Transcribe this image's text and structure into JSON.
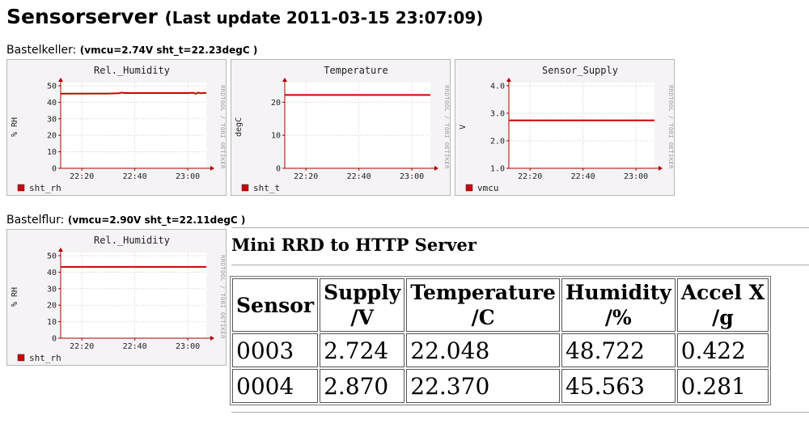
{
  "header": {
    "title": "Sensorserver",
    "subtitle": "(Last update 2011-03-15 23:07:09)"
  },
  "sections": [
    {
      "name": "Bastelkeller:",
      "info": "(vmcu=2.74V sht_t=22.23degC )"
    },
    {
      "name": "Bastelflur:",
      "info": "(vmcu=2.90V sht_t=22.11degC )"
    }
  ],
  "watermark": "RRDTOOL / TOBI OETIKER",
  "colors": {
    "series": "#cc0000",
    "axis": "#aa0000",
    "grid": "#d7c9c9",
    "background": "#f5f3f5",
    "plot": "#ffffff"
  },
  "chart_data": [
    {
      "type": "line",
      "title": "Rel._Humidity",
      "ylabel": "% RH",
      "xticks": [
        "22:20",
        "22:40",
        "23:00"
      ],
      "xtick_values": [
        20,
        40,
        60
      ],
      "xlim": [
        12,
        67
      ],
      "yticks": [
        "0",
        "10",
        "20",
        "30",
        "40",
        "50"
      ],
      "ytick_values": [
        0,
        10,
        20,
        30,
        40,
        50
      ],
      "ylim": [
        0,
        50
      ],
      "grid": true,
      "legend": "sht_rh",
      "legend_position": "bottom-left",
      "series": [
        {
          "name": "sht_rh",
          "x": [
            12,
            30,
            34,
            35,
            36,
            40,
            50,
            60,
            62,
            63,
            64,
            65,
            66,
            67
          ],
          "y": [
            45.2,
            45.3,
            45.5,
            45.9,
            45.6,
            45.6,
            45.6,
            45.6,
            45.8,
            45.2,
            45.9,
            45.4,
            45.8,
            45.5
          ]
        }
      ]
    },
    {
      "type": "line",
      "title": "Temperature",
      "ylabel": "degC",
      "xticks": [
        "22:20",
        "22:40",
        "23:00"
      ],
      "xtick_values": [
        20,
        40,
        60
      ],
      "xlim": [
        12,
        67
      ],
      "yticks": [
        "0",
        "10",
        "20"
      ],
      "ytick_values": [
        0,
        10,
        20
      ],
      "ylim": [
        0,
        25
      ],
      "grid": true,
      "legend": "sht_t",
      "legend_position": "bottom-left",
      "series": [
        {
          "name": "sht_t",
          "x": [
            12,
            67
          ],
          "y": [
            22.2,
            22.2
          ]
        }
      ]
    },
    {
      "type": "line",
      "title": "Sensor_Supply",
      "ylabel": "V",
      "xticks": [
        "22:20",
        "22:40",
        "23:00"
      ],
      "xtick_values": [
        20,
        40,
        60
      ],
      "xlim": [
        12,
        67
      ],
      "yticks": [
        "1.0",
        "2.0",
        "3.0",
        "4.0"
      ],
      "ytick_values": [
        1,
        2,
        3,
        4
      ],
      "ylim": [
        1,
        4
      ],
      "grid": true,
      "legend": "vmcu",
      "legend_position": "bottom-left",
      "series": [
        {
          "name": "vmcu",
          "x": [
            12,
            67
          ],
          "y": [
            2.74,
            2.74
          ]
        }
      ]
    },
    {
      "type": "line",
      "title": "Rel._Humidity",
      "ylabel": "% RH",
      "xticks": [
        "22:20",
        "22:40",
        "23:00"
      ],
      "xtick_values": [
        20,
        40,
        60
      ],
      "xlim": [
        12,
        67
      ],
      "yticks": [
        "0",
        "10",
        "20",
        "30",
        "40",
        "50"
      ],
      "ytick_values": [
        0,
        10,
        20,
        30,
        40,
        50
      ],
      "ylim": [
        0,
        50
      ],
      "grid": true,
      "legend": "sht_rh",
      "legend_position": "bottom-left",
      "series": [
        {
          "name": "sht_rh",
          "x": [
            12,
            67
          ],
          "y": [
            43.2,
            43.2
          ]
        }
      ]
    }
  ],
  "rrd": {
    "title": "Mini RRD to HTTP Server",
    "columns": [
      {
        "line1": "Sensor",
        "line2": ""
      },
      {
        "line1": "Supply",
        "line2": "/V"
      },
      {
        "line1": "Temperature",
        "line2": "/C"
      },
      {
        "line1": "Humidity",
        "line2": "/%"
      },
      {
        "line1": "Accel X",
        "line2": "/g"
      }
    ],
    "rows": [
      [
        "0003",
        "2.724",
        "22.048",
        "48.722",
        "0.422"
      ],
      [
        "0004",
        "2.870",
        "22.370",
        "45.563",
        "0.281"
      ]
    ]
  }
}
